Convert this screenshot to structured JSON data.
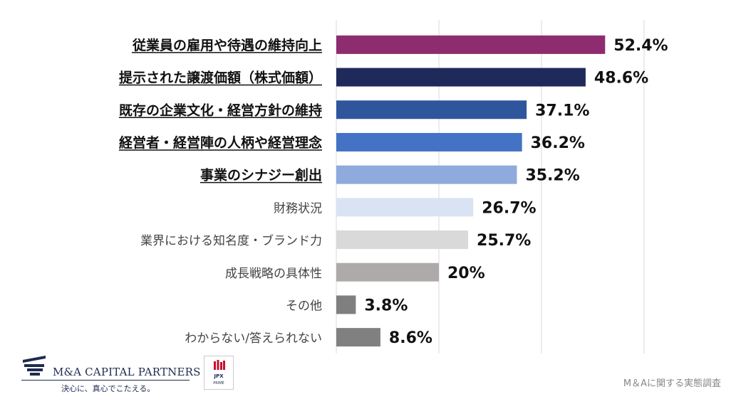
{
  "chart_data": {
    "type": "bar",
    "orientation": "horizontal",
    "categories": [
      "従業員の雇用や待遇の維持向上",
      "提示された譲渡価額（株式価額）",
      "既存の企業文化・経営方針の維持",
      "経営者・経営陣の人柄や経営理念",
      "事業のシナジー創出",
      "財務状況",
      "業界における知名度・ブランド力",
      "成長戦略の具体性",
      "その他",
      "わからない/答えられない"
    ],
    "values": [
      52.4,
      48.6,
      37.1,
      36.2,
      35.2,
      26.7,
      25.7,
      20,
      3.8,
      8.6
    ],
    "value_labels": [
      "52.4%",
      "48.6%",
      "37.1%",
      "36.2%",
      "35.2%",
      "26.7%",
      "25.7%",
      "20%",
      "3.8%",
      "8.6%"
    ],
    "emphasized": [
      true,
      true,
      true,
      true,
      true,
      false,
      false,
      false,
      false,
      false
    ],
    "bar_colors": [
      "#8e2c70",
      "#1f2a5a",
      "#2f559c",
      "#4472c4",
      "#8faadc",
      "#dae3f3",
      "#d9d9d9",
      "#aeaaaa",
      "#7f7f7f",
      "#808080"
    ],
    "xlim": [
      0,
      60
    ],
    "gridlines": [
      20,
      40,
      60
    ],
    "grid": true,
    "title": "",
    "xlabel": "",
    "ylabel": ""
  },
  "branding": {
    "company": "M&A CAPITAL PARTNERS",
    "tagline": "決心に、真心でこたえる。",
    "exchange_badge": "JPX",
    "exchange_sub": "PRIME"
  },
  "source": "M＆Aに関する実態調査"
}
